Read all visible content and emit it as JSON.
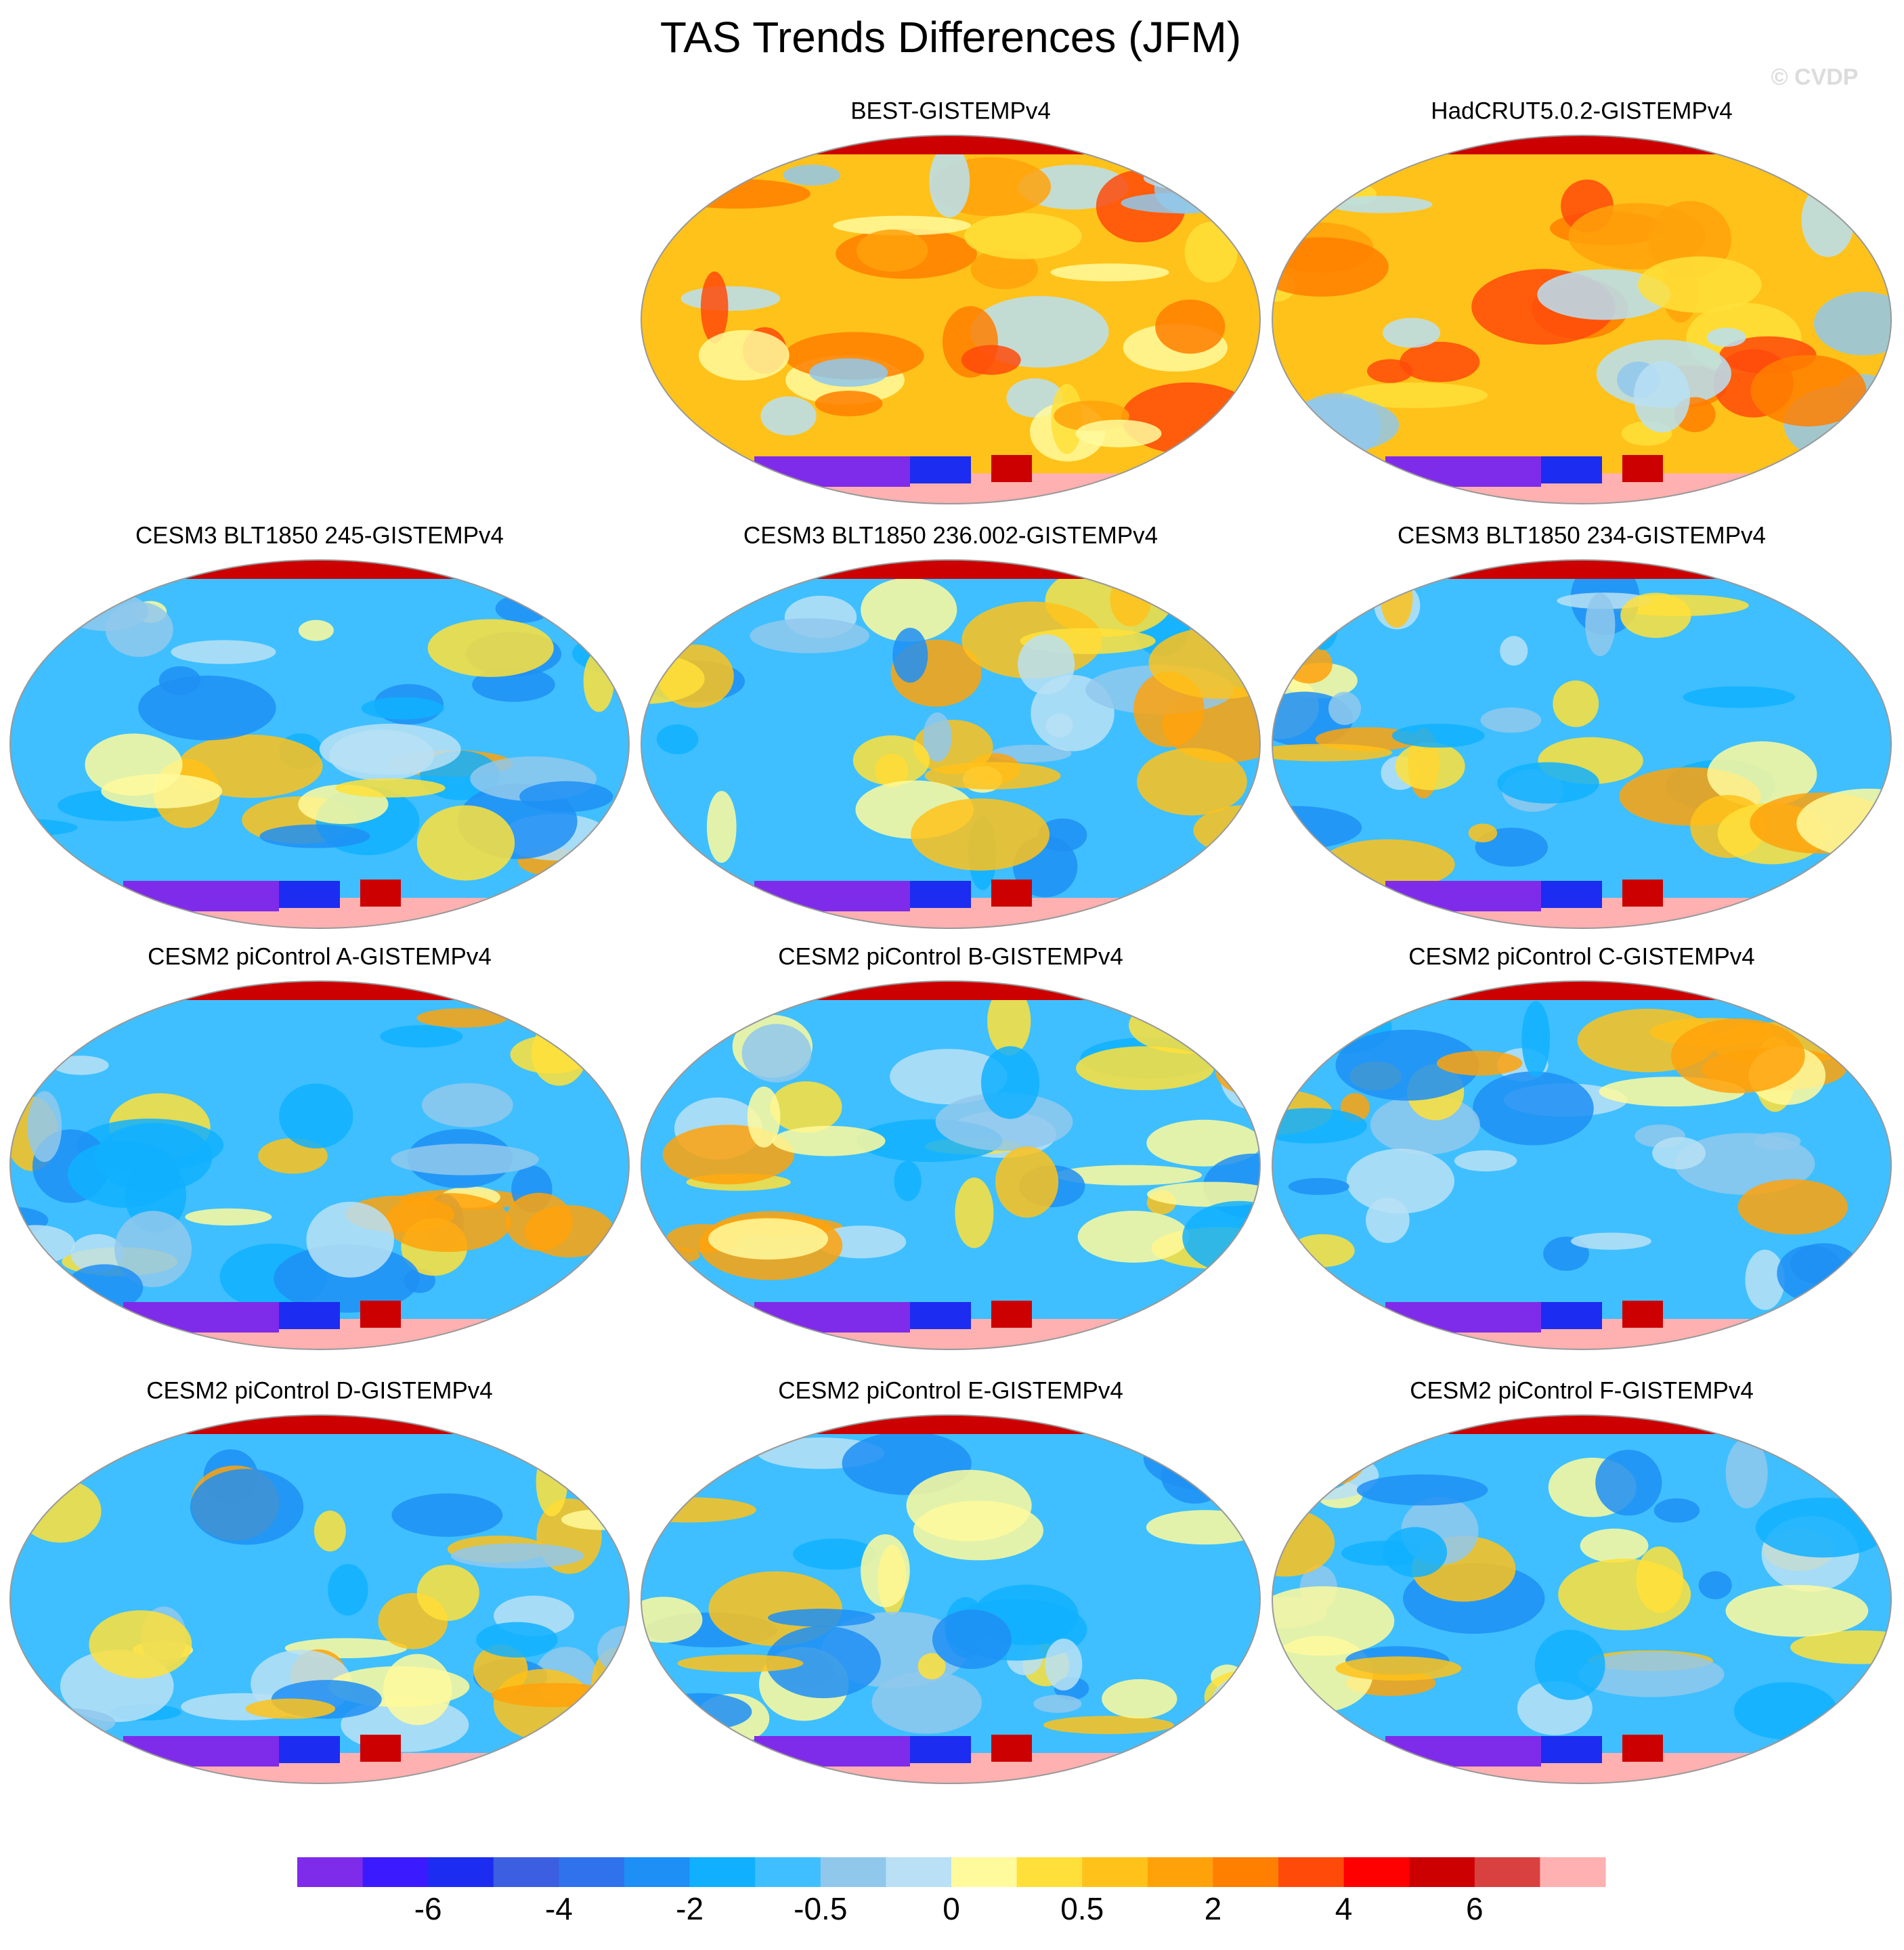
{
  "title": "TAS Trends Differences (JFM)",
  "watermark": "© CVDP",
  "panels": [
    {
      "title": "BEST-GISTEMPv4"
    },
    {
      "title": "HadCRUT5.0.2-GISTEMPv4"
    },
    {
      "title": "CESM3 BLT1850 245-GISTEMPv4"
    },
    {
      "title": "CESM3 BLT1850 236.002-GISTEMPv4"
    },
    {
      "title": "CESM3 BLT1850 234-GISTEMPv4"
    },
    {
      "title": "CESM2 piControl A-GISTEMPv4"
    },
    {
      "title": "CESM2 piControl B-GISTEMPv4"
    },
    {
      "title": "CESM2 piControl C-GISTEMPv4"
    },
    {
      "title": "CESM2 piControl D-GISTEMPv4"
    },
    {
      "title": "CESM2 piControl E-GISTEMPv4"
    },
    {
      "title": "CESM2 piControl F-GISTEMPv4"
    }
  ],
  "colorbar": {
    "colors": [
      "#7f2bea",
      "#3c1aff",
      "#1c2cf0",
      "#3b5fe0",
      "#2f72eb",
      "#1e8ff5",
      "#10b0ff",
      "#3fbfff",
      "#90c8ec",
      "#b9e0f5",
      "#fffa9c",
      "#ffe03a",
      "#ffc21a",
      "#ffa20a",
      "#ff7f00",
      "#ff4a0a",
      "#ff0000",
      "#cc0000",
      "#d94040",
      "#ffb0b0"
    ],
    "labels": [
      "-6",
      "-4",
      "-2",
      "-0.5",
      "0",
      "0.5",
      "2",
      "4",
      "6"
    ]
  }
}
